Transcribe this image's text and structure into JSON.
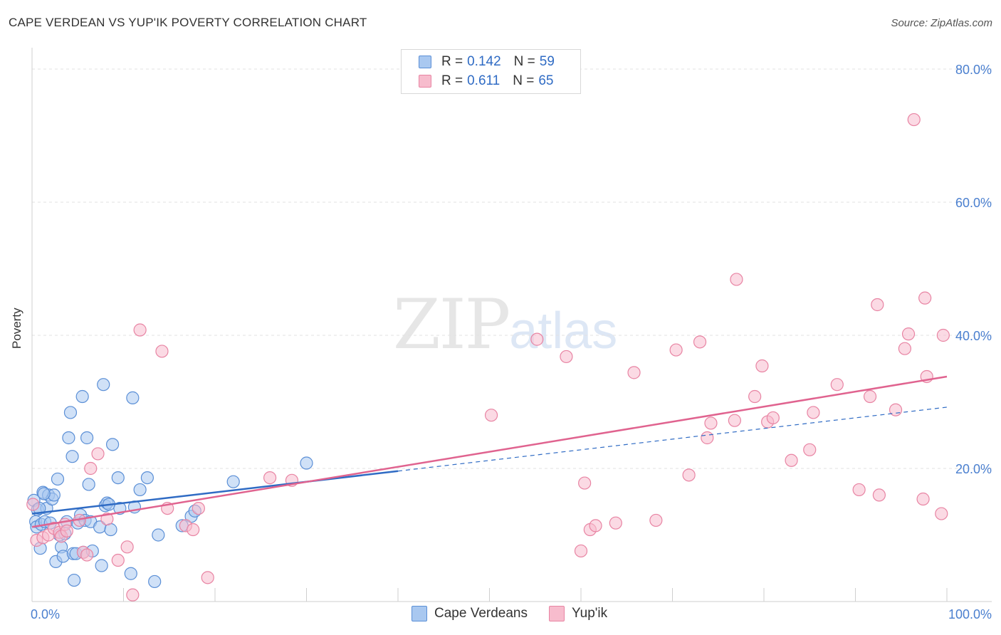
{
  "title": "CAPE VERDEAN VS YUP'IK POVERTY CORRELATION CHART",
  "source": "Source: ZipAtlas.com",
  "watermark": {
    "zip": "ZIP",
    "atlas": "atlas"
  },
  "colors": {
    "blue_fill": "#a9c8f0",
    "blue_stroke": "#5b8fd6",
    "blue_line": "#2f6bc4",
    "pink_fill": "#f7bccd",
    "pink_stroke": "#e884a3",
    "pink_line": "#e0638f",
    "axis_text": "#4a7fcf",
    "grid": "#e2e2e2"
  },
  "legend_top": [
    {
      "r_label": "R =",
      "r_value": "0.142",
      "n_label": "N =",
      "n_value": "59"
    },
    {
      "r_label": "R =",
      "r_value": "0.611",
      "n_label": "N =",
      "n_value": "65"
    }
  ],
  "legend_bottom": [
    "Cape Verdeans",
    "Yup'ik"
  ],
  "chart_data": {
    "type": "scatter",
    "title": "CAPE VERDEAN VS YUP'IK POVERTY CORRELATION CHART",
    "xlabel": "",
    "ylabel": "Poverty",
    "xlim": [
      0,
      100
    ],
    "ylim": [
      0,
      80
    ],
    "x_tick_labels": [
      "0.0%",
      "100.0%"
    ],
    "y_ticks": [
      20,
      40,
      60,
      80
    ],
    "y_tick_labels": [
      "20.0%",
      "40.0%",
      "60.0%",
      "80.0%"
    ],
    "grid": true,
    "legend_position": "top-center",
    "series": [
      {
        "name": "Cape Verdeans",
        "r": 0.142,
        "n": 59,
        "trend": {
          "x0": 0,
          "y0": 13.2,
          "x1": 40,
          "y1": 19.6,
          "dashed_to_x": 100,
          "dashed_to_y": 29.2
        },
        "points": [
          [
            0.2,
            15.2
          ],
          [
            0.4,
            12.0
          ],
          [
            0.5,
            11.2
          ],
          [
            0.6,
            13.8
          ],
          [
            0.9,
            8.0
          ],
          [
            1.0,
            11.6
          ],
          [
            1.2,
            16.4
          ],
          [
            1.4,
            12.0
          ],
          [
            1.6,
            14.0
          ],
          [
            1.8,
            16.0
          ],
          [
            2.0,
            11.8
          ],
          [
            2.2,
            15.4
          ],
          [
            2.4,
            16.0
          ],
          [
            2.6,
            6.0
          ],
          [
            2.8,
            18.4
          ],
          [
            3.0,
            10.0
          ],
          [
            3.2,
            8.2
          ],
          [
            3.4,
            6.8
          ],
          [
            3.6,
            10.2
          ],
          [
            3.8,
            12.0
          ],
          [
            4.0,
            24.6
          ],
          [
            4.2,
            28.4
          ],
          [
            4.4,
            21.8
          ],
          [
            4.5,
            7.2
          ],
          [
            4.6,
            3.2
          ],
          [
            4.8,
            7.2
          ],
          [
            5.0,
            11.8
          ],
          [
            5.3,
            13.0
          ],
          [
            5.5,
            30.8
          ],
          [
            5.6,
            7.4
          ],
          [
            5.8,
            12.2
          ],
          [
            6.0,
            24.6
          ],
          [
            6.2,
            17.6
          ],
          [
            6.4,
            12.0
          ],
          [
            6.6,
            7.6
          ],
          [
            7.4,
            11.2
          ],
          [
            7.6,
            5.4
          ],
          [
            7.8,
            32.6
          ],
          [
            8.0,
            14.4
          ],
          [
            8.2,
            14.8
          ],
          [
            8.4,
            14.6
          ],
          [
            8.6,
            10.8
          ],
          [
            8.8,
            23.6
          ],
          [
            9.4,
            18.6
          ],
          [
            9.6,
            14.0
          ],
          [
            10.8,
            4.2
          ],
          [
            11.0,
            30.6
          ],
          [
            11.2,
            14.2
          ],
          [
            11.8,
            16.8
          ],
          [
            12.6,
            18.6
          ],
          [
            13.4,
            3.0
          ],
          [
            13.8,
            10.0
          ],
          [
            16.4,
            11.4
          ],
          [
            17.4,
            12.8
          ],
          [
            17.8,
            13.6
          ],
          [
            22.0,
            18.0
          ],
          [
            30.0,
            20.8
          ],
          [
            1.3,
            16.2
          ],
          [
            0.8,
            14.0
          ]
        ]
      },
      {
        "name": "Yup'ik",
        "r": 0.611,
        "n": 65,
        "trend": {
          "x0": 0,
          "y0": 11.2,
          "x1": 100,
          "y1": 33.8
        },
        "points": [
          [
            0.1,
            14.6
          ],
          [
            0.5,
            9.2
          ],
          [
            1.2,
            9.6
          ],
          [
            1.8,
            10.0
          ],
          [
            2.4,
            11.0
          ],
          [
            3.0,
            10.4
          ],
          [
            3.2,
            9.8
          ],
          [
            3.6,
            11.6
          ],
          [
            3.8,
            10.6
          ],
          [
            5.2,
            12.2
          ],
          [
            5.6,
            7.4
          ],
          [
            6.0,
            7.0
          ],
          [
            6.4,
            20.0
          ],
          [
            7.2,
            22.2
          ],
          [
            8.2,
            12.4
          ],
          [
            9.4,
            6.2
          ],
          [
            10.4,
            8.2
          ],
          [
            11.0,
            1.0
          ],
          [
            11.8,
            40.8
          ],
          [
            14.2,
            37.6
          ],
          [
            14.8,
            14.0
          ],
          [
            16.8,
            11.4
          ],
          [
            17.6,
            10.8
          ],
          [
            18.2,
            14.0
          ],
          [
            19.2,
            3.6
          ],
          [
            26.0,
            18.6
          ],
          [
            28.4,
            18.2
          ],
          [
            50.2,
            28.0
          ],
          [
            55.2,
            39.4
          ],
          [
            58.4,
            36.8
          ],
          [
            60.0,
            7.6
          ],
          [
            60.4,
            17.8
          ],
          [
            61.0,
            10.8
          ],
          [
            61.6,
            11.4
          ],
          [
            63.8,
            11.8
          ],
          [
            65.8,
            34.4
          ],
          [
            68.2,
            12.2
          ],
          [
            70.4,
            37.8
          ],
          [
            71.8,
            19.0
          ],
          [
            73.0,
            39.0
          ],
          [
            73.8,
            24.6
          ],
          [
            74.2,
            26.8
          ],
          [
            76.8,
            27.2
          ],
          [
            77.0,
            48.4
          ],
          [
            79.0,
            30.8
          ],
          [
            79.8,
            35.4
          ],
          [
            80.4,
            27.0
          ],
          [
            81.0,
            27.6
          ],
          [
            83.0,
            21.2
          ],
          [
            85.0,
            22.8
          ],
          [
            85.4,
            28.4
          ],
          [
            88.0,
            32.6
          ],
          [
            90.4,
            16.8
          ],
          [
            91.6,
            30.8
          ],
          [
            92.4,
            44.6
          ],
          [
            92.6,
            16.0
          ],
          [
            94.4,
            28.8
          ],
          [
            95.4,
            38.0
          ],
          [
            95.8,
            40.2
          ],
          [
            96.4,
            72.4
          ],
          [
            97.4,
            15.4
          ],
          [
            97.6,
            45.6
          ],
          [
            97.8,
            33.8
          ],
          [
            99.4,
            13.2
          ],
          [
            99.6,
            40.0
          ]
        ]
      }
    ]
  }
}
